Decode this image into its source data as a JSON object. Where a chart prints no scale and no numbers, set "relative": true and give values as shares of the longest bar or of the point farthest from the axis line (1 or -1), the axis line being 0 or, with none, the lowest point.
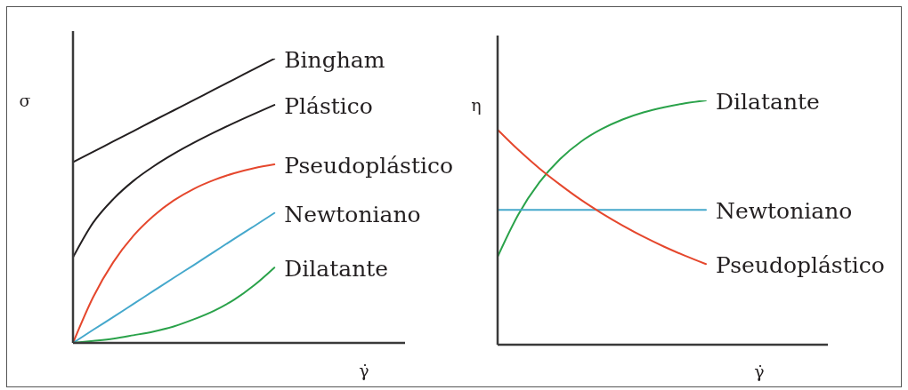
{
  "chart_data": [
    {
      "type": "line",
      "relative": true,
      "xlabel": "γ̇",
      "ylabel": "σ",
      "categories": [
        null,
        null,
        null,
        null,
        null,
        null,
        null,
        null,
        null,
        null,
        null,
        null,
        null,
        null,
        null,
        null,
        null
      ],
      "series": [
        {
          "name": "Bingham",
          "color": "#231f20",
          "values": [
            0.636,
            0.672,
            0.709,
            0.745,
            0.782,
            0.818,
            0.854,
            0.891,
            0.927,
            0.964,
            1.0,
            null,
            null,
            null,
            null,
            null,
            null
          ]
        },
        {
          "name": "Plástico",
          "color": "#231f20",
          "values": [
            0.301,
            0.423,
            0.506,
            0.57,
            0.621,
            0.665,
            0.704,
            0.74,
            0.774,
            0.806,
            0.837,
            null,
            null,
            null,
            null,
            null,
            null
          ]
        },
        {
          "name": "Pseudoplástico",
          "color": "#e5472d",
          "values": [
            0,
            0.161,
            0.284,
            0.377,
            0.447,
            0.501,
            0.542,
            0.573,
            0.597,
            0.615,
            0.628,
            null,
            null,
            null,
            null,
            null,
            null
          ]
        },
        {
          "name": "Newtoniano",
          "color": "#45a8cc",
          "values": [
            0,
            0.046,
            0.091,
            0.137,
            0.183,
            0.229,
            0.274,
            0.32,
            0.366,
            0.411,
            0.457,
            null,
            null,
            null,
            null,
            null,
            null
          ]
        },
        {
          "name": "Dilatante",
          "color": "#2aa24a",
          "values": [
            0,
            0.007,
            0.015,
            0.027,
            0.04,
            0.058,
            0.083,
            0.113,
            0.152,
            0.203,
            0.265,
            null,
            null,
            null,
            null,
            null,
            null
          ]
        }
      ]
    },
    {
      "type": "line",
      "relative": true,
      "xlabel": "γ̇",
      "ylabel": "η",
      "categories": [
        null,
        null,
        null,
        null,
        null,
        null,
        null,
        null,
        null,
        null,
        null,
        null,
        null,
        null,
        null,
        null
      ],
      "series": [
        {
          "name": "Dilatante",
          "color": "#2aa24a",
          "values": [
            0.36,
            0.534,
            0.664,
            0.76,
            0.831,
            0.883,
            0.922,
            0.951,
            0.972,
            0.988,
            1.0,
            null,
            null,
            null,
            null,
            null
          ]
        },
        {
          "name": "Newtoniano",
          "color": "#45a8cc",
          "values": [
            0.552,
            0.552,
            0.552,
            0.552,
            0.552,
            0.552,
            0.552,
            0.552,
            0.552,
            0.552,
            0.552,
            null,
            null,
            null,
            null,
            null
          ]
        },
        {
          "name": "Pseudoplástico",
          "color": "#e5472d",
          "values": [
            0.88,
            0.797,
            0.722,
            0.655,
            0.593,
            0.538,
            0.488,
            0.442,
            0.401,
            0.364,
            0.33,
            null,
            null,
            null,
            null,
            null
          ]
        }
      ]
    }
  ]
}
